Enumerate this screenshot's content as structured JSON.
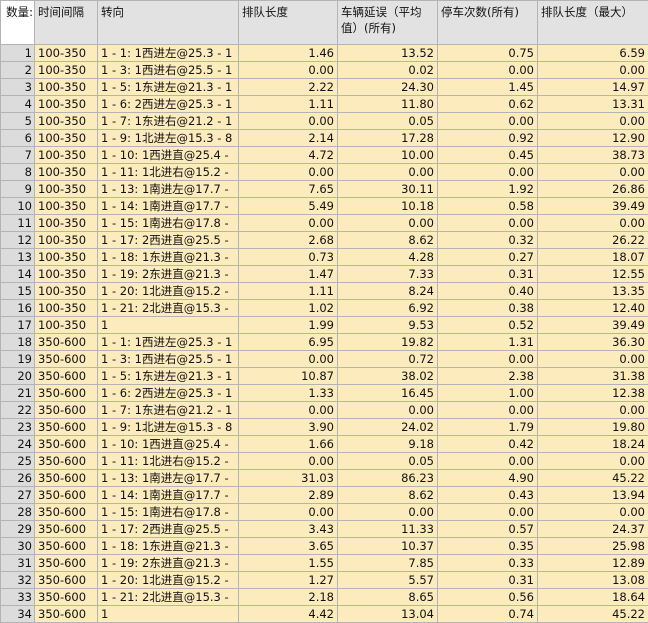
{
  "header": {
    "corner": "数量:",
    "columns": [
      "时间间隔",
      "转向",
      "排队长度",
      "车辆延误（平均值）(所有)",
      "停车次数(所有)",
      "排队长度（最大）"
    ]
  },
  "rows": [
    [
      "1",
      "100-350",
      "1 - 1: 1西进左@25.3  - 1",
      "1.46",
      "13.52",
      "0.75",
      "6.59"
    ],
    [
      "2",
      "100-350",
      "1 - 3: 1西进右@25.5  - 1",
      "0.00",
      "0.02",
      "0.00",
      "0.00"
    ],
    [
      "3",
      "100-350",
      "1 - 5: 1东进左@21.3  - 1",
      "2.22",
      "24.30",
      "1.45",
      "14.97"
    ],
    [
      "4",
      "100-350",
      "1 - 6: 2西进左@25.3  - 1",
      "1.11",
      "11.80",
      "0.62",
      "13.31"
    ],
    [
      "5",
      "100-350",
      "1 - 7: 1东进右@21.2  - 1",
      "0.00",
      "0.05",
      "0.00",
      "0.00"
    ],
    [
      "6",
      "100-350",
      "1 - 9: 1北进左@15.3  - 8",
      "2.14",
      "17.28",
      "0.92",
      "12.90"
    ],
    [
      "7",
      "100-350",
      "1 - 10: 1西进直@25.4 -",
      "4.72",
      "10.00",
      "0.45",
      "38.73"
    ],
    [
      "8",
      "100-350",
      "1 - 11: 1北进右@15.2 -",
      "0.00",
      "0.00",
      "0.00",
      "0.00"
    ],
    [
      "9",
      "100-350",
      "1 - 13: 1南进左@17.7 -",
      "7.65",
      "30.11",
      "1.92",
      "26.86"
    ],
    [
      "10",
      "100-350",
      "1 - 14: 1南进直@17.7 -",
      "5.49",
      "10.18",
      "0.58",
      "39.49"
    ],
    [
      "11",
      "100-350",
      "1 - 15: 1南进右@17.8 -",
      "0.00",
      "0.00",
      "0.00",
      "0.00"
    ],
    [
      "12",
      "100-350",
      "1 - 17: 2西进直@25.5 -",
      "2.68",
      "8.62",
      "0.32",
      "26.22"
    ],
    [
      "13",
      "100-350",
      "1 - 18: 1东进直@21.3 -",
      "0.73",
      "4.28",
      "0.27",
      "18.07"
    ],
    [
      "14",
      "100-350",
      "1 - 19: 2东进直@21.3 -",
      "1.47",
      "7.33",
      "0.31",
      "12.55"
    ],
    [
      "15",
      "100-350",
      "1 - 20: 1北进直@15.2 -",
      "1.11",
      "8.24",
      "0.40",
      "13.35"
    ],
    [
      "16",
      "100-350",
      "1 - 21: 2北进直@15.3 -",
      "1.02",
      "6.92",
      "0.38",
      "12.40"
    ],
    [
      "17",
      "100-350",
      "1",
      "1.99",
      "9.53",
      "0.52",
      "39.49"
    ],
    [
      "18",
      "350-600",
      "1 - 1: 1西进左@25.3  - 1",
      "6.95",
      "19.82",
      "1.31",
      "36.30"
    ],
    [
      "19",
      "350-600",
      "1 - 3: 1西进右@25.5  - 1",
      "0.00",
      "0.72",
      "0.00",
      "0.00"
    ],
    [
      "20",
      "350-600",
      "1 - 5: 1东进左@21.3  - 1",
      "10.87",
      "38.02",
      "2.38",
      "31.38"
    ],
    [
      "21",
      "350-600",
      "1 - 6: 2西进左@25.3  - 1",
      "1.33",
      "16.45",
      "1.00",
      "12.38"
    ],
    [
      "22",
      "350-600",
      "1 - 7: 1东进右@21.2  - 1",
      "0.00",
      "0.00",
      "0.00",
      "0.00"
    ],
    [
      "23",
      "350-600",
      "1 - 9: 1北进左@15.3  - 8",
      "3.90",
      "24.02",
      "1.79",
      "19.80"
    ],
    [
      "24",
      "350-600",
      "1 - 10: 1西进直@25.4 -",
      "1.66",
      "9.18",
      "0.42",
      "18.24"
    ],
    [
      "25",
      "350-600",
      "1 - 11: 1北进右@15.2 -",
      "0.00",
      "0.05",
      "0.00",
      "0.00"
    ],
    [
      "26",
      "350-600",
      "1 - 13: 1南进左@17.7 -",
      "31.03",
      "86.23",
      "4.90",
      "45.22"
    ],
    [
      "27",
      "350-600",
      "1 - 14: 1南进直@17.7 -",
      "2.89",
      "8.62",
      "0.43",
      "13.94"
    ],
    [
      "28",
      "350-600",
      "1 - 15: 1南进右@17.8 -",
      "0.00",
      "0.00",
      "0.00",
      "0.00"
    ],
    [
      "29",
      "350-600",
      "1 - 17: 2西进直@25.5 -",
      "3.43",
      "11.33",
      "0.57",
      "24.37"
    ],
    [
      "30",
      "350-600",
      "1 - 18: 1东进直@21.3 -",
      "3.65",
      "10.37",
      "0.35",
      "25.98"
    ],
    [
      "31",
      "350-600",
      "1 - 19: 2东进直@21.3 -",
      "1.55",
      "7.85",
      "0.33",
      "12.89"
    ],
    [
      "32",
      "350-600",
      "1 - 20: 1北进直@15.2 -",
      "1.27",
      "5.57",
      "0.31",
      "13.08"
    ],
    [
      "33",
      "350-600",
      "1 - 21: 2北进直@15.3 -",
      "2.18",
      "8.65",
      "0.56",
      "18.64"
    ],
    [
      "34",
      "350-600",
      "1",
      "4.42",
      "13.04",
      "0.74",
      "45.22"
    ]
  ]
}
